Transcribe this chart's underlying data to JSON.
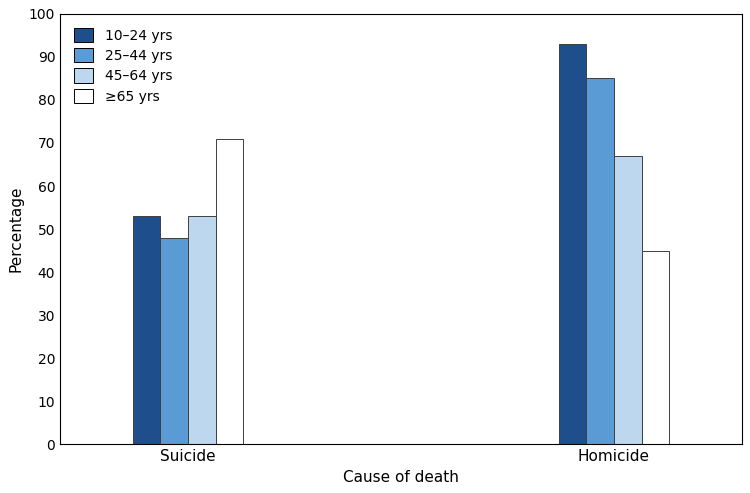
{
  "categories": [
    "Suicide",
    "Homicide"
  ],
  "age_groups": [
    "10–24 yrs",
    "25–44 yrs",
    "45–64 yrs",
    "≥65 yrs"
  ],
  "values": {
    "Suicide": [
      53,
      48,
      53,
      71
    ],
    "Homicide": [
      93,
      85,
      67,
      45
    ]
  },
  "colors": [
    "#1f4e8c",
    "#5b9bd5",
    "#bdd7ee",
    "#ffffff"
  ],
  "bar_edgecolor": "#3f3f3f",
  "ylabel": "Percentage",
  "xlabel": "Cause of death",
  "ylim": [
    0,
    100
  ],
  "yticks": [
    0,
    10,
    20,
    30,
    40,
    50,
    60,
    70,
    80,
    90,
    100
  ],
  "bar_width": 0.13,
  "group_centers": [
    1.0,
    3.0
  ],
  "figsize": [
    7.5,
    4.93
  ],
  "dpi": 100
}
